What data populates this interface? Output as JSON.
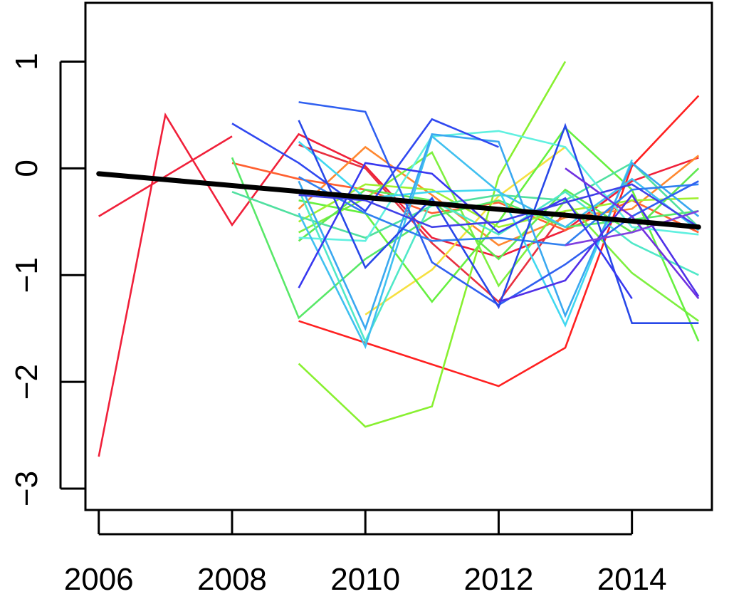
{
  "chart_data": {
    "type": "line",
    "title": "",
    "xlabel": "",
    "ylabel": "",
    "xlim": [
      2005.8,
      2015.2
    ],
    "ylim": [
      -3.2,
      1.55
    ],
    "x_ticks": [
      "2006",
      "2008",
      "2010",
      "2012",
      "2014"
    ],
    "x_tick_values": [
      2006,
      2008,
      2010,
      2012,
      2014
    ],
    "y_ticks": [
      "−3",
      "−2",
      "−1",
      "0",
      "1"
    ],
    "y_tick_values": [
      -3,
      -2,
      -1,
      0,
      1
    ],
    "grid": false,
    "legend": "none",
    "trend": {
      "color": "#000000",
      "x": [
        2006,
        2015
      ],
      "y": [
        -0.05,
        -0.55
      ]
    },
    "series": [
      {
        "color": "#f0203a",
        "x": [
          2006,
          2007,
          2008,
          2009,
          2010,
          2011,
          2012,
          2013,
          2014,
          2015
        ],
        "y": [
          -2.7,
          0.5,
          -0.53,
          0.32,
          0.02,
          -0.65,
          -0.83,
          -0.58,
          -0.12,
          0.1
        ]
      },
      {
        "color": "#f0203a",
        "x": [
          2006,
          2008
        ],
        "y": [
          -0.45,
          0.3
        ]
      },
      {
        "color": "#ff2020",
        "x": [
          2009,
          2012,
          2013,
          2014,
          2015
        ],
        "y": [
          -1.43,
          -2.04,
          -1.68,
          0.02,
          0.68
        ]
      },
      {
        "color": "#e83040",
        "x": [
          2009,
          2010,
          2011,
          2012,
          2013
        ],
        "y": [
          0.22,
          0.0,
          -0.7,
          -1.25,
          -0.4
        ]
      },
      {
        "color": "#ff6030",
        "x": [
          2008,
          2009,
          2010,
          2011,
          2012,
          2013,
          2014,
          2015
        ],
        "y": [
          0.05,
          -0.1,
          -0.2,
          -0.42,
          -0.32,
          -0.58,
          -0.3,
          -0.6
        ]
      },
      {
        "color": "#ff8830",
        "x": [
          2009,
          2010,
          2011,
          2012,
          2013,
          2014,
          2015
        ],
        "y": [
          -0.38,
          0.2,
          -0.25,
          -0.72,
          -0.46,
          -0.38,
          0.12
        ]
      },
      {
        "color": "#f6e040",
        "x": [
          2010,
          2011,
          2012,
          2013
        ],
        "y": [
          -1.37,
          -0.95,
          -0.26,
          0.2
        ]
      },
      {
        "color": "#88f030",
        "x": [
          2009,
          2010,
          2011,
          2012,
          2013
        ],
        "y": [
          -1.83,
          -2.42,
          -2.23,
          -0.08,
          1.0
        ]
      },
      {
        "color": "#7ef040",
        "x": [
          2009,
          2010,
          2011,
          2012,
          2013,
          2014,
          2015
        ],
        "y": [
          -0.6,
          -0.28,
          0.15,
          -1.1,
          -0.3,
          -0.98,
          -1.43
        ]
      },
      {
        "color": "#66f040",
        "x": [
          2009,
          2010,
          2011,
          2012,
          2013,
          2014,
          2015
        ],
        "y": [
          -0.3,
          -0.42,
          -1.25,
          -0.5,
          0.38,
          -0.2,
          -1.62
        ]
      },
      {
        "color": "#60e850",
        "x": [
          2009,
          2010,
          2011,
          2012,
          2013,
          2014,
          2015
        ],
        "y": [
          -0.68,
          -0.2,
          -0.3,
          -0.85,
          -0.2,
          -0.6,
          0.0
        ]
      },
      {
        "color": "#58e868",
        "x": [
          2008,
          2009,
          2010,
          2011,
          2012,
          2013,
          2014,
          2015
        ],
        "y": [
          0.1,
          -1.4,
          -0.85,
          -0.45,
          -0.3,
          -0.55,
          -0.48,
          -0.4
        ]
      },
      {
        "color": "#a0f030",
        "x": [
          2009,
          2010,
          2011,
          2012,
          2013,
          2014,
          2015
        ],
        "y": [
          -0.5,
          -0.15,
          -0.2,
          -0.55,
          -0.4,
          -0.3,
          -0.28
        ]
      },
      {
        "color": "#50e0a0",
        "x": [
          2008,
          2009,
          2010,
          2011,
          2012,
          2013,
          2014,
          2015
        ],
        "y": [
          -0.22,
          -0.45,
          -0.65,
          -0.35,
          -0.25,
          -0.3,
          0.05,
          -0.55
        ]
      },
      {
        "color": "#50e8c8",
        "x": [
          2009,
          2010,
          2011,
          2012,
          2013,
          2014,
          2015
        ],
        "y": [
          -0.2,
          -1.62,
          -0.3,
          -0.62,
          -0.22,
          -0.7,
          -1.0
        ]
      },
      {
        "color": "#60f0e0",
        "x": [
          2009,
          2010,
          2011,
          2012,
          2013,
          2014,
          2015
        ],
        "y": [
          -0.65,
          -0.68,
          0.3,
          0.35,
          0.2,
          -0.55,
          -0.62
        ]
      },
      {
        "color": "#40d8f0",
        "x": [
          2009,
          2010,
          2011,
          2012,
          2013,
          2014
        ],
        "y": [
          0.25,
          -0.28,
          -0.22,
          -0.2,
          -1.47,
          0.08
        ]
      },
      {
        "color": "#40c0f0",
        "x": [
          2009,
          2010,
          2011,
          2012,
          2013,
          2014,
          2015
        ],
        "y": [
          -0.42,
          -1.67,
          0.3,
          -0.22,
          -0.55,
          -0.1,
          -0.58
        ]
      },
      {
        "color": "#3aa8f0",
        "x": [
          2009,
          2010,
          2011,
          2012,
          2013,
          2014,
          2015
        ],
        "y": [
          -0.12,
          -1.5,
          0.32,
          0.25,
          -1.38,
          0.05,
          -0.45
        ]
      },
      {
        "color": "#3080f0",
        "x": [
          2009,
          2010,
          2011,
          2012,
          2013,
          2014,
          2015
        ],
        "y": [
          -0.08,
          -0.42,
          -0.68,
          -0.65,
          -0.72,
          -0.2,
          -0.15
        ]
      },
      {
        "color": "#3060f0",
        "x": [
          2009,
          2010,
          2011,
          2012,
          2013,
          2014,
          2015
        ],
        "y": [
          0.62,
          0.53,
          -0.88,
          -1.28,
          -0.9,
          -0.45,
          -0.12
        ]
      },
      {
        "color": "#3048f0",
        "x": [
          2008,
          2009,
          2010,
          2011,
          2012
        ],
        "y": [
          0.42,
          0.05,
          -0.4,
          0.46,
          0.2
        ]
      },
      {
        "color": "#2848e8",
        "x": [
          2009,
          2010,
          2011,
          2012,
          2013,
          2014,
          2015
        ],
        "y": [
          0.45,
          -0.93,
          -0.28,
          -1.3,
          0.4,
          -1.45,
          -1.45
        ]
      },
      {
        "color": "#3838f0",
        "x": [
          2009,
          2010,
          2011,
          2012,
          2013,
          2014
        ],
        "y": [
          -1.12,
          0.05,
          -0.05,
          -0.6,
          -0.28,
          -1.22
        ]
      },
      {
        "color": "#4040e8",
        "x": [
          2009,
          2010,
          2011,
          2012,
          2013,
          2014,
          2015
        ],
        "y": [
          -0.25,
          -0.3,
          -0.55,
          -0.5,
          -0.32,
          -0.15,
          -0.55
        ]
      },
      {
        "color": "#5030e8",
        "x": [
          2012,
          2013,
          2014,
          2015
        ],
        "y": [
          -1.25,
          -1.05,
          -0.25,
          -1.2
        ]
      },
      {
        "color": "#7030e0",
        "x": [
          2013,
          2014,
          2015
        ],
        "y": [
          0.0,
          -0.45,
          -1.22
        ]
      },
      {
        "color": "#8040e0",
        "x": [
          2013,
          2014,
          2015
        ],
        "y": [
          -0.72,
          -0.6,
          -0.4
        ]
      }
    ]
  }
}
